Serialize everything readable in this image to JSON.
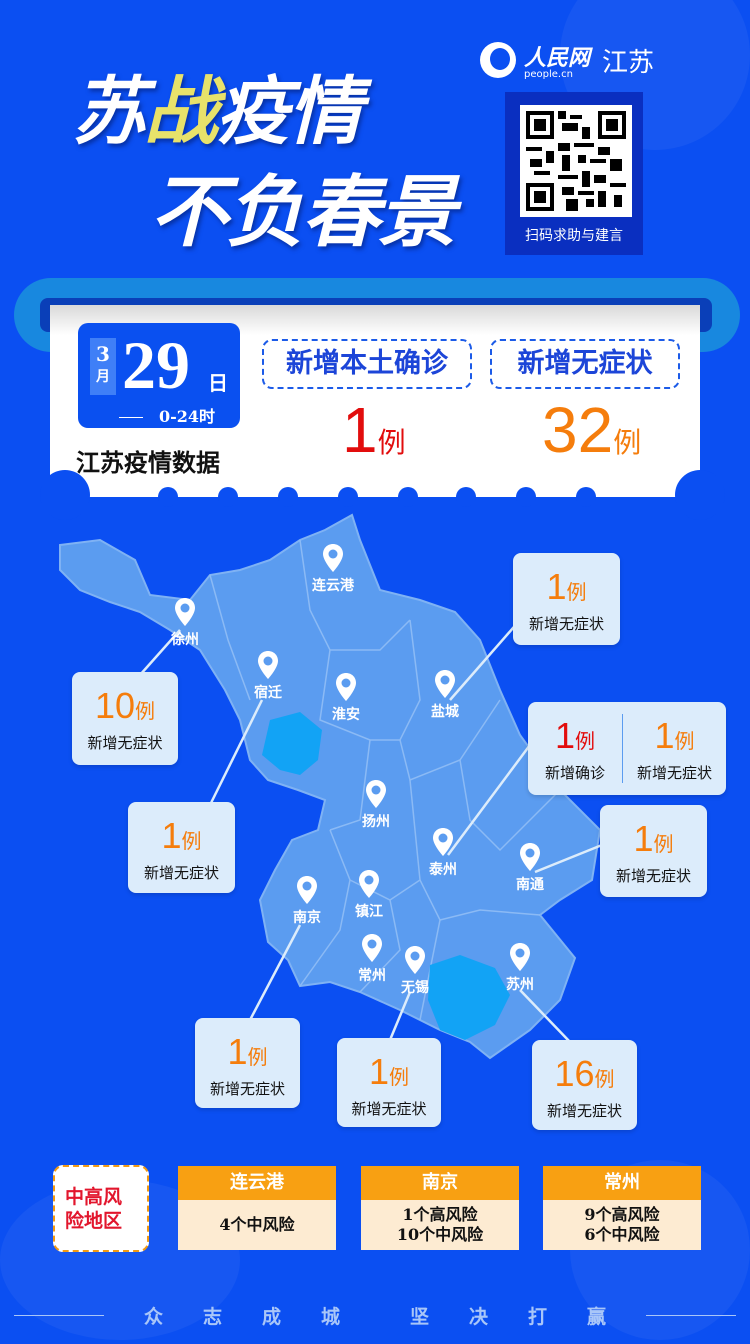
{
  "header": {
    "title_line1_a": "苏",
    "title_line1_b": "战",
    "title_line1_c": "疫情",
    "title_line2": "不负春景",
    "logo_brand": "人民网",
    "logo_url": "people.cn",
    "logo_region": "江苏",
    "qr_caption": "扫码求助与建言"
  },
  "summary": {
    "month": "3",
    "month_unit": "月",
    "day": "29",
    "day_unit": "日",
    "hours": "0-24时",
    "caption": "江苏疫情数据",
    "confirmed_label": "新增本土确诊",
    "confirmed_value": "1",
    "asymptomatic_label": "新增无症状",
    "asymptomatic_value": "32",
    "unit": "例"
  },
  "map": {
    "cities": [
      "连云港",
      "徐州",
      "宿迁",
      "淮安",
      "盐城",
      "扬州",
      "泰州",
      "南通",
      "南京",
      "镇江",
      "常州",
      "无锡",
      "苏州"
    ],
    "callouts": [
      {
        "city": "徐州",
        "value": "10",
        "unit": "例",
        "label": "新增无症状"
      },
      {
        "city": "宿迁",
        "value": "1",
        "unit": "例",
        "label": "新增无症状"
      },
      {
        "city": "盐城",
        "value": "1",
        "unit": "例",
        "label": "新增无症状"
      },
      {
        "city": "泰州",
        "value": "1",
        "unit": "例",
        "label": "新增确诊",
        "value2": "1",
        "label2": "新增无症状"
      },
      {
        "city": "南通",
        "value": "1",
        "unit": "例",
        "label": "新增无症状"
      },
      {
        "city": "南京",
        "value": "1",
        "unit": "例",
        "label": "新增无症状"
      },
      {
        "city": "无锡",
        "value": "1",
        "unit": "例",
        "label": "新增无症状"
      },
      {
        "city": "苏州",
        "value": "16",
        "unit": "例",
        "label": "新增无症状"
      }
    ],
    "colors": {
      "province": "#5b9cf0",
      "lake": "#12a3f5",
      "callout": "#dcecfb",
      "confirmed": "#e20d0d",
      "asymptomatic": "#f57d0c"
    }
  },
  "risk": {
    "label": "中高风险地区",
    "areas": [
      {
        "city": "连云港",
        "lines": [
          "4个中风险"
        ]
      },
      {
        "city": "南京",
        "lines": [
          "1个高风险",
          "10个中风险"
        ]
      },
      {
        "city": "常州",
        "lines": [
          "9个高风险",
          "6个中风险"
        ]
      }
    ]
  },
  "footer": {
    "slogan_a": [
      "众",
      "志",
      "成",
      "城"
    ],
    "slogan_b": [
      "坚",
      "决",
      "打",
      "赢"
    ]
  }
}
